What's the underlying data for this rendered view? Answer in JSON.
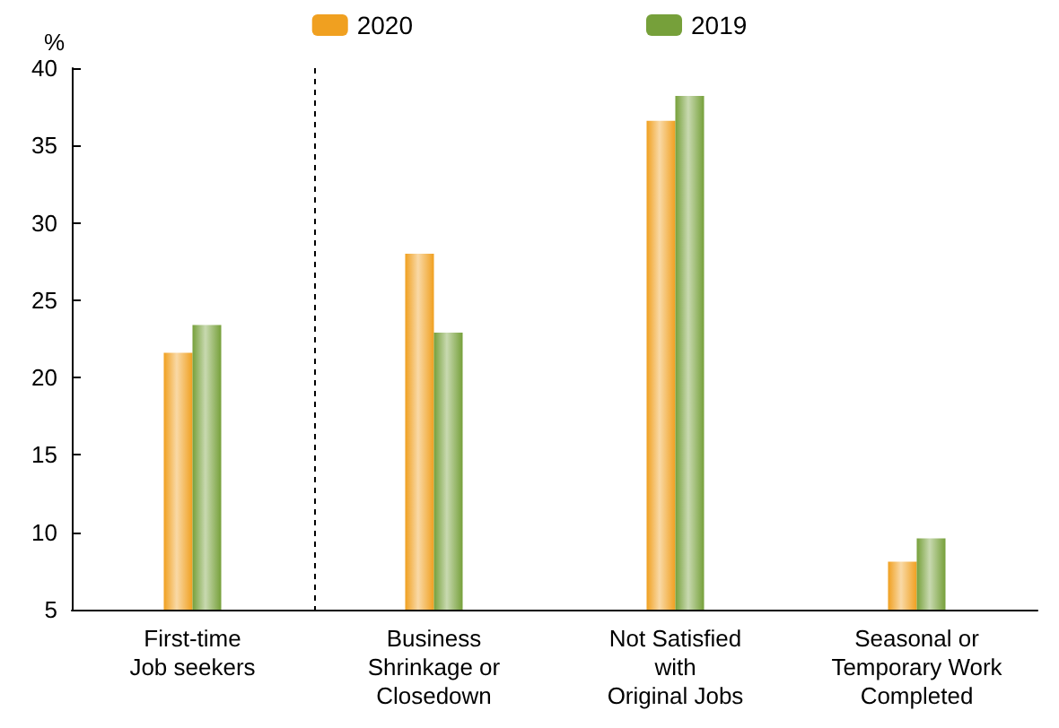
{
  "chart_data": {
    "type": "bar",
    "ylabel": "%",
    "categories": [
      "First-time\nJob seekers",
      "Business\nShrinkage or\nClosedown",
      "Not Satisfied\nwith\nOriginal Jobs",
      "Seasonal or\nTemporary Work\nCompleted"
    ],
    "series": [
      {
        "name": "2020",
        "color": "#f0a020",
        "values": [
          21.6,
          28.0,
          36.6,
          8.1
        ]
      },
      {
        "name": "2019",
        "color": "#76a03a",
        "values": [
          23.4,
          22.9,
          38.2,
          9.6
        ]
      }
    ],
    "ylim": [
      5,
      40
    ],
    "yticks": [
      5,
      10,
      15,
      20,
      25,
      30,
      35,
      40
    ],
    "grid": false,
    "legend": "top"
  }
}
